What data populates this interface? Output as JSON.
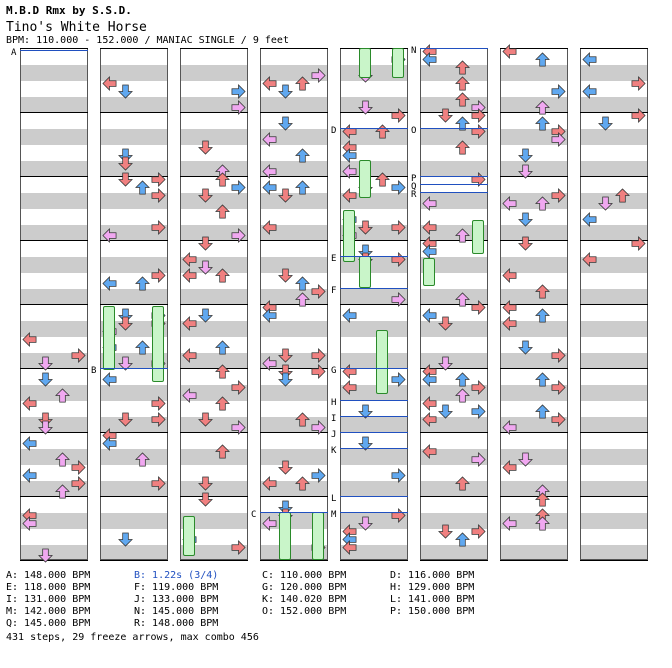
{
  "header": {
    "series": "M.B.D Rmx by S.S.D.",
    "title": "Tino's White Horse",
    "info": "BPM: 110.000 - 152.000 / MANIAC SINGLE / 9 feet"
  },
  "chart_data": {
    "type": "step-chart",
    "lanes": [
      "left",
      "down",
      "up",
      "right"
    ],
    "columns": 8,
    "section_labels": [
      "A",
      "B",
      "C",
      "D",
      "E",
      "F",
      "G",
      "H",
      "I",
      "J",
      "K",
      "L",
      "M",
      "N",
      "O",
      "P",
      "Q",
      "R"
    ],
    "colors": {
      "quarter": "#f08080",
      "eighth": "#60a8f0",
      "sixteenth": "#f0a8f0",
      "freeze": "#c9f5c9",
      "bpm_line": "#2050c0"
    }
  },
  "legend": [
    "A: 148.000 BPM",
    "B: 1.22s (3/4)",
    "C: 110.000 BPM",
    "D: 116.000 BPM",
    "E: 118.000 BPM",
    "F: 119.000 BPM",
    "G: 120.000 BPM",
    "H: 129.000 BPM",
    "I: 131.000 BPM",
    "J: 133.000 BPM",
    "K: 140.020 BPM",
    "L: 141.000 BPM",
    "M: 142.000 BPM",
    "N: 145.000 BPM",
    "O: 152.000 BPM",
    "P: 150.000 BPM",
    "Q: 145.000 BPM",
    "R: 148.000 BPM"
  ],
  "footer": "431 steps, 29 freeze arrows, max combo 456"
}
